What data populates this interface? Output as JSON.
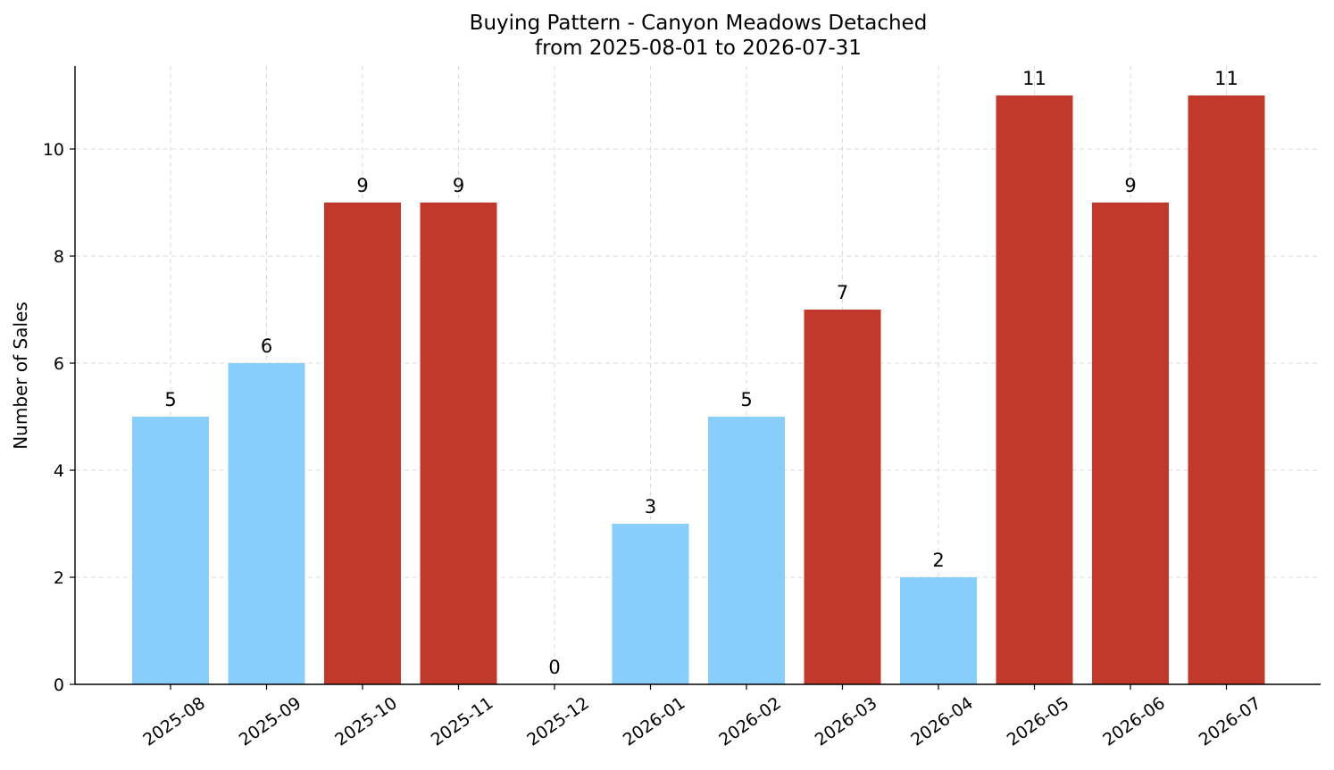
{
  "chart_data": {
    "type": "bar",
    "title": "Buying Pattern - Canyon Meadows Detached",
    "subtitle": "from 2025-08-01 to 2026-07-31",
    "xlabel": "",
    "ylabel": "Number of Sales",
    "categories": [
      "2025-08",
      "2025-09",
      "2025-10",
      "2025-11",
      "2025-12",
      "2026-01",
      "2026-02",
      "2026-03",
      "2026-04",
      "2026-05",
      "2026-06",
      "2026-07"
    ],
    "values": [
      5,
      6,
      9,
      9,
      0,
      3,
      5,
      7,
      2,
      11,
      9,
      11
    ],
    "bar_colors": [
      "#87CEFA",
      "#87CEFA",
      "#C0392B",
      "#C0392B",
      "#87CEFA",
      "#87CEFA",
      "#87CEFA",
      "#C0392B",
      "#87CEFA",
      "#C0392B",
      "#C0392B",
      "#C0392B"
    ],
    "ylim": [
      0,
      11.55
    ],
    "yticks": [
      0,
      2,
      4,
      6,
      8,
      10
    ],
    "grid": true,
    "data_labels": true,
    "legend": "none"
  }
}
